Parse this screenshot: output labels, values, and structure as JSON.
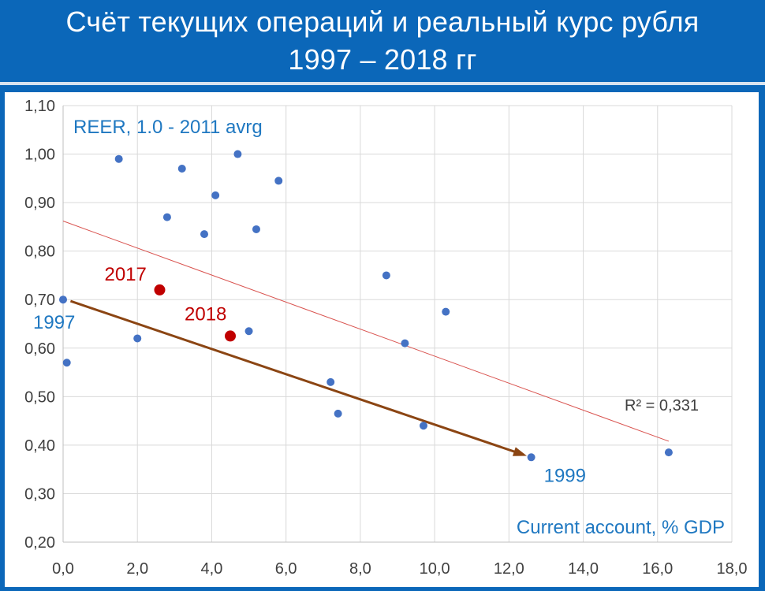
{
  "header": {
    "title_line1": "Счёт текущих операций и реальный курс рубля",
    "title_line2": "1997 – 2018 гг"
  },
  "colors": {
    "background": "#0b67b9",
    "point": "#4472c4",
    "highlight": "#c00000",
    "trendline": "#d9534f",
    "arrow": "#8b4513",
    "label_blue": "#1f78c1"
  },
  "chart_data": {
    "type": "scatter",
    "xlim": [
      0,
      18
    ],
    "ylim": [
      0.2,
      1.1
    ],
    "x_ticks": [
      "0,0",
      "2,0",
      "4,0",
      "6,0",
      "8,0",
      "10,0",
      "12,0",
      "14,0",
      "16,0",
      "18,0"
    ],
    "y_ticks": [
      "0,20",
      "0,30",
      "0,40",
      "0,50",
      "0,60",
      "0,70",
      "0,80",
      "0,90",
      "1,00",
      "1,10"
    ],
    "grid": true,
    "ylabel": "REER, 1.0 - 2011 avrg",
    "xlabel": "Current account, % GDP",
    "points": [
      {
        "x": 0.0,
        "y": 0.7
      },
      {
        "x": 0.1,
        "y": 0.57
      },
      {
        "x": 1.5,
        "y": 0.99
      },
      {
        "x": 2.0,
        "y": 0.62
      },
      {
        "x": 2.8,
        "y": 0.87
      },
      {
        "x": 3.2,
        "y": 0.97
      },
      {
        "x": 3.8,
        "y": 0.835
      },
      {
        "x": 4.1,
        "y": 0.915
      },
      {
        "x": 4.7,
        "y": 1.0
      },
      {
        "x": 5.0,
        "y": 0.635
      },
      {
        "x": 5.2,
        "y": 0.845
      },
      {
        "x": 5.8,
        "y": 0.945
      },
      {
        "x": 7.2,
        "y": 0.53
      },
      {
        "x": 7.4,
        "y": 0.465
      },
      {
        "x": 8.7,
        "y": 0.75
      },
      {
        "x": 9.2,
        "y": 0.61
      },
      {
        "x": 9.7,
        "y": 0.44
      },
      {
        "x": 10.3,
        "y": 0.675
      },
      {
        "x": 12.6,
        "y": 0.375
      },
      {
        "x": 16.3,
        "y": 0.385
      }
    ],
    "highlighted": [
      {
        "label": "2017",
        "x": 2.6,
        "y": 0.72
      },
      {
        "label": "2018",
        "x": 4.5,
        "y": 0.625
      }
    ],
    "annotations": [
      {
        "label": "1997",
        "x": 0.0,
        "y": 0.7
      },
      {
        "label": "1999",
        "x": 12.6,
        "y": 0.375
      }
    ],
    "trendline": {
      "x1": 0.0,
      "y1": 0.862,
      "x2": 16.3,
      "y2": 0.408,
      "r2_label": "R² = 0,331"
    },
    "arrow": {
      "x1": 0.2,
      "y1": 0.697,
      "x2": 12.4,
      "y2": 0.38
    }
  }
}
